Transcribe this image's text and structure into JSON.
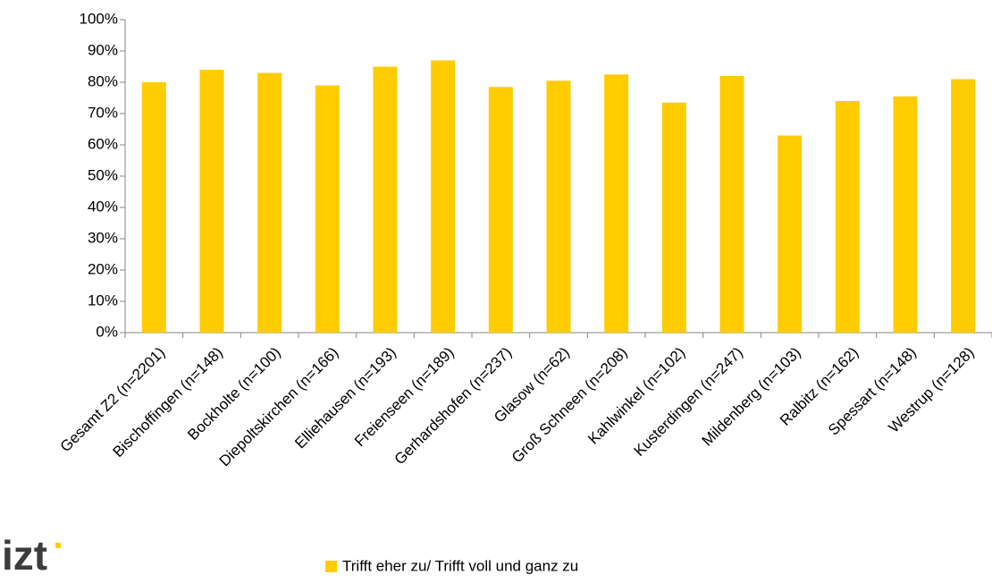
{
  "logo": "izt",
  "chart_data": {
    "type": "bar",
    "categories": [
      "Gesamt Z2  (n=2201)",
      "Bischoffingen (n=148)",
      "Bockholte (n=100)",
      "Diepoltskirchen (n=166)",
      "Elliehausen  (n=193)",
      "Freienseen  (n=189)",
      "Gerhardshofen  (n=237)",
      "Glasow  (n=62)",
      "Groß Schneen (n=208)",
      "Kahlwinkel  (n=102)",
      "Kusterdingen  (n=247)",
      "Mildenberg  (n=103)",
      "Ralbitz  (n=162)",
      "Spessart  (n=148)",
      "Westrup  (n=128)"
    ],
    "series": [
      {
        "name": "Trifft eher zu/ Trifft voll und ganz zu",
        "color": "#ffcc00",
        "values": [
          80,
          84,
          83,
          79,
          85,
          87,
          78.5,
          80.5,
          82.5,
          73.5,
          82,
          63,
          74,
          75.5,
          81
        ]
      }
    ],
    "ylim": [
      0,
      100
    ],
    "yticks": [
      {
        "value": 0,
        "label": "0%"
      },
      {
        "value": 10,
        "label": "10%"
      },
      {
        "value": 20,
        "label": "20%"
      },
      {
        "value": 30,
        "label": "30%"
      },
      {
        "value": 40,
        "label": "40%"
      },
      {
        "value": 50,
        "label": "50%"
      },
      {
        "value": 60,
        "label": "60%"
      },
      {
        "value": 70,
        "label": "70%"
      },
      {
        "value": 80,
        "label": "80%"
      },
      {
        "value": 90,
        "label": "90%"
      },
      {
        "value": 100,
        "label": "100%"
      }
    ],
    "grid": false,
    "legend": "bottom"
  }
}
